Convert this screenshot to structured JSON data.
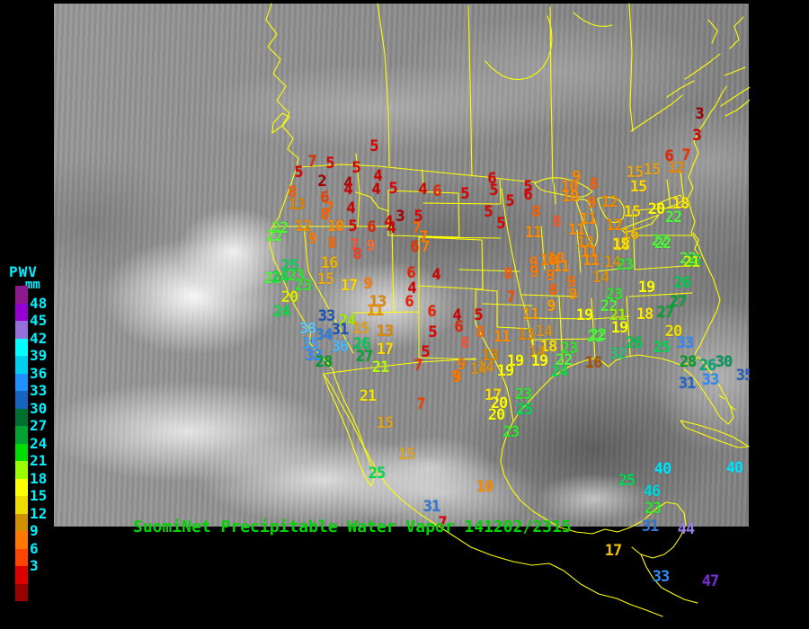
{
  "caption": {
    "text": "SuomiNet Precipitable Water Vapor 141202/2315",
    "color": "#00D400"
  },
  "map": {
    "outline_color": "#FFFF00"
  },
  "legend": {
    "title": "PWV",
    "unit": "mm",
    "text_color": "#00F0FF",
    "labels": [
      "48",
      "45",
      "42",
      "39",
      "36",
      "33",
      "30",
      "27",
      "24",
      "21",
      "18",
      "15",
      "12",
      "9",
      "6",
      "3"
    ],
    "colors": [
      "#8E188E",
      "#9400D3",
      "#9370DB",
      "#00FFFF",
      "#00D0F0",
      "#1E90FF",
      "#1565C0",
      "#00702F",
      "#00A233",
      "#00DD00",
      "#9AFF00",
      "#FFFF00",
      "#EEDC00",
      "#D09000",
      "#FF7700",
      "#FF4400",
      "#DD0000",
      "#990000"
    ]
  },
  "stations": [
    [
      "5",
      416,
      164,
      "#E00000"
    ],
    [
      "7",
      347,
      181,
      "#E03000"
    ],
    [
      "5",
      367,
      183,
      "#E00000"
    ],
    [
      "5",
      396,
      188,
      "#E00000"
    ],
    [
      "5",
      332,
      193,
      "#E00000"
    ],
    [
      "2",
      358,
      203,
      "#A00000"
    ],
    [
      "4",
      420,
      197,
      "#D40000"
    ],
    [
      "4",
      387,
      205,
      "#B40000"
    ],
    [
      "4",
      387,
      212,
      "#D40000"
    ],
    [
      "4",
      418,
      212,
      "#D40000"
    ],
    [
      "5",
      437,
      211,
      "#E00000"
    ],
    [
      "4",
      470,
      212,
      "#D40000"
    ],
    [
      "6",
      486,
      214,
      "#EE2800"
    ],
    [
      "8",
      325,
      215,
      "#FF5C00"
    ],
    [
      "6",
      361,
      221,
      "#F04000"
    ],
    [
      "13",
      330,
      229,
      "#DC8600"
    ],
    [
      "7",
      366,
      233,
      "#FF6A00"
    ],
    [
      "4",
      390,
      233,
      "#D40000"
    ],
    [
      "8",
      361,
      240,
      "#FF6000"
    ],
    [
      "4",
      432,
      248,
      "#D40000"
    ],
    [
      "3",
      445,
      242,
      "#A80000"
    ],
    [
      "5",
      465,
      242,
      "#E00000"
    ],
    [
      "22",
      311,
      255,
      "#50F53C"
    ],
    [
      "12",
      337,
      253,
      "#EE8A00"
    ],
    [
      "10",
      373,
      253,
      "#FF8A00"
    ],
    [
      "5",
      392,
      253,
      "#E00000"
    ],
    [
      "6",
      413,
      254,
      "#E62400"
    ],
    [
      "4",
      435,
      255,
      "#D40000"
    ],
    [
      "7",
      463,
      255,
      "#FF6A00"
    ],
    [
      "22",
      305,
      264,
      "#50F53C"
    ],
    [
      "9",
      347,
      267,
      "#FF7A00"
    ],
    [
      "8",
      369,
      272,
      "#FF6600"
    ],
    [
      "7",
      394,
      274,
      "#FF5430"
    ],
    [
      "9",
      412,
      275,
      "#FF6A30"
    ],
    [
      "7",
      471,
      265,
      "#FF7A00"
    ],
    [
      "6",
      461,
      276,
      "#EE3000"
    ],
    [
      "7",
      473,
      276,
      "#FF8000"
    ],
    [
      "8",
      397,
      284,
      "#F04020"
    ],
    [
      "5",
      517,
      217,
      "#E00000"
    ],
    [
      "6",
      547,
      200,
      "#E00000"
    ],
    [
      "5",
      549,
      213,
      "#E00000"
    ],
    [
      "5",
      567,
      225,
      "#E00000"
    ],
    [
      "5",
      587,
      209,
      "#E00000"
    ],
    [
      "6",
      587,
      218,
      "#E00000"
    ],
    [
      "5",
      543,
      237,
      "#E00000"
    ],
    [
      "5",
      557,
      250,
      "#E00000"
    ],
    [
      "8",
      596,
      237,
      "#FF6000"
    ],
    [
      "8",
      619,
      248,
      "#FF5630"
    ],
    [
      "11",
      593,
      260,
      "#FC8C00"
    ],
    [
      "9",
      641,
      198,
      "#FF8A00"
    ],
    [
      "10",
      633,
      209,
      "#FF8200"
    ],
    [
      "10",
      634,
      220,
      "#FF8A00"
    ],
    [
      "8",
      660,
      206,
      "#FF5C00"
    ],
    [
      "9",
      658,
      227,
      "#FF7200"
    ],
    [
      "12",
      678,
      226,
      "#EE8A00"
    ],
    [
      "15",
      706,
      193,
      "#E2A41E"
    ],
    [
      "15",
      725,
      190,
      "#E2A41E"
    ],
    [
      "12",
      752,
      188,
      "#EE8A00"
    ],
    [
      "15",
      710,
      209,
      "#FFD800"
    ],
    [
      "15",
      703,
      237,
      "#FFD800"
    ],
    [
      "20",
      730,
      234,
      "#FFFF00"
    ],
    [
      "18",
      757,
      228,
      "#FFEA00"
    ],
    [
      "22",
      749,
      243,
      "#50F53C"
    ],
    [
      "11",
      654,
      245,
      "#FC8C00"
    ],
    [
      "11",
      641,
      257,
      "#FC8C00"
    ],
    [
      "16",
      701,
      262,
      "#EEB400"
    ],
    [
      "12",
      683,
      252,
      "#EE8A00"
    ],
    [
      "12",
      651,
      271,
      "#EE8A00"
    ],
    [
      "18",
      691,
      274,
      "#FFEA00"
    ],
    [
      "22",
      734,
      269,
      "#50F53C"
    ],
    [
      "15",
      690,
      273,
      "#FFD800"
    ],
    [
      "11",
      655,
      282,
      "#FC8C00"
    ],
    [
      "11",
      657,
      291,
      "#FC8C00"
    ],
    [
      "14",
      681,
      293,
      "#D6921C"
    ],
    [
      "23",
      695,
      296,
      "#2FE82F"
    ],
    [
      "22",
      765,
      289,
      "#50F53C"
    ],
    [
      "25",
      770,
      292,
      "#00DC55"
    ],
    [
      "10",
      618,
      289,
      "#FF8200"
    ],
    [
      "11",
      624,
      298,
      "#FC8C00"
    ],
    [
      "22",
      737,
      272,
      "#50F53C"
    ],
    [
      "3",
      778,
      128,
      "#A00000"
    ],
    [
      "3",
      775,
      152,
      "#D40000"
    ],
    [
      "6",
      744,
      175,
      "#E62400"
    ],
    [
      "7",
      763,
      174,
      "#F23000"
    ],
    [
      "10",
      610,
      291,
      "#FF8200"
    ],
    [
      "9",
      593,
      294,
      "#FF7A00"
    ],
    [
      "9",
      594,
      304,
      "#FF7A00"
    ],
    [
      "8",
      565,
      306,
      "#FF5C00"
    ],
    [
      "9",
      612,
      308,
      "#FF7A00"
    ],
    [
      "4",
      485,
      307,
      "#D40000"
    ],
    [
      "8",
      615,
      324,
      "#FF6000"
    ],
    [
      "9",
      637,
      329,
      "#FF8A00"
    ],
    [
      "9",
      635,
      315,
      "#FF7200"
    ],
    [
      "7",
      568,
      332,
      "#FF4E00"
    ],
    [
      "9",
      613,
      342,
      "#FFA000"
    ],
    [
      "11",
      590,
      351,
      "#F0A000"
    ],
    [
      "19",
      650,
      352,
      "#FFFF00"
    ],
    [
      "6",
      480,
      348,
      "#EE2000"
    ],
    [
      "4",
      508,
      352,
      "#D40000"
    ],
    [
      "5",
      532,
      352,
      "#E00000"
    ],
    [
      "6",
      510,
      365,
      "#E62400"
    ],
    [
      "5",
      481,
      371,
      "#E00000"
    ],
    [
      "8",
      534,
      371,
      "#FF6A00"
    ],
    [
      "11",
      558,
      376,
      "#FC8C00"
    ],
    [
      "13",
      585,
      374,
      "#E08600"
    ],
    [
      "14",
      605,
      370,
      "#D6921C"
    ],
    [
      "5",
      473,
      393,
      "#E00000"
    ],
    [
      "8",
      517,
      383,
      "#FF5430"
    ],
    [
      "18",
      610,
      387,
      "#FFE000"
    ],
    [
      "23",
      633,
      389,
      "#2FE82F"
    ],
    [
      "22",
      662,
      376,
      "#50F53C"
    ],
    [
      "13",
      545,
      397,
      "#E08600"
    ],
    [
      "14",
      597,
      393,
      "#D6921C"
    ],
    [
      "19",
      573,
      403,
      "#FFFF00"
    ],
    [
      "19",
      600,
      403,
      "#FFFF00"
    ],
    [
      "22",
      627,
      402,
      "#50F53C"
    ],
    [
      "9",
      513,
      407,
      "#FF7A00"
    ],
    [
      "14",
      540,
      410,
      "#D6921C"
    ],
    [
      "19",
      562,
      414,
      "#FFFF00"
    ],
    [
      "24",
      622,
      415,
      "#0ADF45"
    ],
    [
      "9",
      507,
      420,
      "#FF7A00"
    ],
    [
      "16",
      660,
      405,
      "#A85200"
    ],
    [
      "14",
      668,
      310,
      "#D6921C"
    ],
    [
      "21",
      769,
      293,
      "#C8F000"
    ],
    [
      "26",
      759,
      316,
      "#00CC50"
    ],
    [
      "23",
      683,
      329,
      "#2FE82F"
    ],
    [
      "19",
      719,
      321,
      "#FFFF00"
    ],
    [
      "27",
      754,
      337,
      "#00A830"
    ],
    [
      "22",
      677,
      342,
      "#50F53C"
    ],
    [
      "21",
      687,
      352,
      "#9BF000"
    ],
    [
      "18",
      717,
      351,
      "#FFEA00"
    ],
    [
      "27",
      740,
      349,
      "#00A830"
    ],
    [
      "19",
      689,
      366,
      "#FFFF00"
    ],
    [
      "22",
      665,
      374,
      "#50F53C"
    ],
    [
      "20",
      749,
      370,
      "#F0E000"
    ],
    [
      "26",
      705,
      383,
      "#00CC50"
    ],
    [
      "33",
      762,
      383,
      "#2E8CFF"
    ],
    [
      "25",
      736,
      388,
      "#00DC55"
    ],
    [
      "32",
      687,
      395,
      "#28C878"
    ],
    [
      "28",
      765,
      404,
      "#00A026"
    ],
    [
      "26",
      787,
      408,
      "#00AA78"
    ],
    [
      "30",
      805,
      404,
      "#00985C"
    ],
    [
      "33",
      790,
      424,
      "#2E8CFF"
    ],
    [
      "31",
      764,
      428,
      "#2064CC"
    ],
    [
      "35",
      828,
      419,
      "#2860C0"
    ],
    [
      "40",
      737,
      523,
      "#00E5FF"
    ],
    [
      "40",
      817,
      522,
      "#00E5FF"
    ],
    [
      "7",
      465,
      408,
      "#F23000"
    ],
    [
      "9",
      508,
      421,
      "#FF7A00"
    ],
    [
      "14",
      532,
      412,
      "#D6921C"
    ],
    [
      "17",
      548,
      441,
      "#FFD800"
    ],
    [
      "20",
      555,
      450,
      "#FFFF00"
    ],
    [
      "20",
      552,
      463,
      "#F6FF00"
    ],
    [
      "23",
      582,
      440,
      "#2FE82F"
    ],
    [
      "25",
      583,
      457,
      "#00DC55"
    ],
    [
      "23",
      568,
      482,
      "#2FE82F"
    ],
    [
      "21",
      409,
      442,
      "#F0E400"
    ],
    [
      "21",
      423,
      410,
      "#B4FF0C"
    ],
    [
      "7",
      468,
      451,
      "#F54000"
    ],
    [
      "15",
      428,
      472,
      "#E2A41E"
    ],
    [
      "15",
      452,
      507,
      "#E2A41E"
    ],
    [
      "25",
      419,
      528,
      "#00DC55"
    ],
    [
      "10",
      539,
      543,
      "#FF8A00"
    ],
    [
      "31",
      480,
      565,
      "#2E78D8"
    ],
    [
      "25",
      697,
      536,
      "#00DC55"
    ],
    [
      "46",
      725,
      548,
      "#00D8E0"
    ],
    [
      "23",
      726,
      567,
      "#2FE82F"
    ],
    [
      "31",
      723,
      587,
      "#2E78D8"
    ],
    [
      "44",
      763,
      590,
      "#9B7FE8"
    ],
    [
      "17",
      682,
      614,
      "#F0C000"
    ],
    [
      "33",
      735,
      643,
      "#2E8CFF"
    ],
    [
      "47",
      790,
      648,
      "#7B2FD8"
    ],
    [
      "7",
      492,
      583,
      "#E00000"
    ],
    [
      "25",
      322,
      297,
      "#00DC55"
    ],
    [
      "16",
      366,
      294,
      "#EEB400"
    ],
    [
      "21",
      303,
      311,
      "#50F53C"
    ],
    [
      "24",
      311,
      310,
      "#0ADF45"
    ],
    [
      "23",
      329,
      308,
      "#2FE82F"
    ],
    [
      "23",
      337,
      319,
      "#2FE82F"
    ],
    [
      "15",
      362,
      312,
      "#E8A820"
    ],
    [
      "17",
      388,
      319,
      "#FFD800"
    ],
    [
      "9",
      409,
      317,
      "#FF7A00"
    ],
    [
      "6",
      457,
      305,
      "#EE2000"
    ],
    [
      "4",
      458,
      322,
      "#D40000"
    ],
    [
      "6",
      455,
      337,
      "#EE2000"
    ],
    [
      "13",
      420,
      337,
      "#E08600"
    ],
    [
      "11",
      417,
      347,
      "#F09000"
    ],
    [
      "20",
      322,
      332,
      "#D8F000"
    ],
    [
      "24",
      313,
      348,
      "#0ADF45"
    ],
    [
      "33",
      363,
      353,
      "#1A55B8"
    ],
    [
      "24",
      386,
      358,
      "#A0F000"
    ],
    [
      "31",
      378,
      368,
      "#1C55B8"
    ],
    [
      "38",
      342,
      367,
      "#5CC8FF"
    ],
    [
      "34",
      360,
      374,
      "#2C7EE4"
    ],
    [
      "15",
      401,
      367,
      "#E2A41E"
    ],
    [
      "13",
      428,
      370,
      "#E08600"
    ],
    [
      "35",
      345,
      384,
      "#3FA0FF"
    ],
    [
      "36",
      378,
      387,
      "#49BAFF"
    ],
    [
      "26",
      402,
      384,
      "#00CC50"
    ],
    [
      "33",
      349,
      397,
      "#2E8CFF"
    ],
    [
      "17",
      428,
      390,
      "#FFD800"
    ],
    [
      "28",
      360,
      404,
      "#00A026"
    ],
    [
      "27",
      405,
      398,
      "#00A830"
    ]
  ]
}
